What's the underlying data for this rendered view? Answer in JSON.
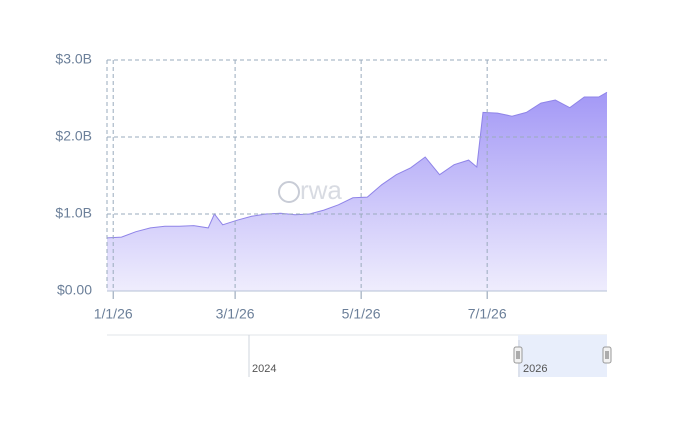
{
  "chart_data": {
    "type": "area",
    "watermark": "rwa",
    "x": [
      "12/29/25",
      "1/5/26",
      "1/12/26",
      "1/19/26",
      "1/26/26",
      "2/2/26",
      "2/9/26",
      "2/16/26",
      "2/19/26",
      "2/23/26",
      "3/2/26",
      "3/9/26",
      "3/16/26",
      "3/23/26",
      "3/30/26",
      "4/6/26",
      "4/13/26",
      "4/20/26",
      "4/27/26",
      "5/4/26",
      "5/11/26",
      "5/18/26",
      "5/25/26",
      "6/1/26",
      "6/8/26",
      "6/15/26",
      "6/22/26",
      "6/26/26",
      "6/29/26",
      "7/6/26",
      "7/13/26",
      "7/20/26",
      "7/27/26",
      "8/3/26",
      "8/10/26",
      "8/17/26",
      "8/24/26",
      "8/28/26"
    ],
    "series": [
      {
        "color": "#8f84e8",
        "values": [
          0.69,
          0.7,
          0.77,
          0.82,
          0.84,
          0.84,
          0.85,
          0.82,
          1.0,
          0.86,
          0.92,
          0.97,
          1.0,
          1.01,
          0.99,
          1.0,
          1.05,
          1.12,
          1.21,
          1.22,
          1.38,
          1.51,
          1.6,
          1.74,
          1.51,
          1.64,
          1.7,
          1.61,
          2.32,
          2.31,
          2.27,
          2.32,
          2.44,
          2.48,
          2.38,
          2.52,
          2.52,
          2.58
        ]
      }
    ],
    "xlim": [
      "12/29/25",
      "8/28/26"
    ],
    "xticks": [
      "1/1/26",
      "3/1/26",
      "5/1/26",
      "7/1/26"
    ],
    "ylim": [
      0,
      3
    ],
    "yticks": [
      {
        "value": 0,
        "label": "$0.00"
      },
      {
        "value": 1,
        "label": "$1.0B"
      },
      {
        "value": 2,
        "label": "$2.0B"
      },
      {
        "value": 3,
        "label": "$3.0B"
      }
    ],
    "grid": true,
    "navigator": {
      "labels": [
        "2024",
        "2026"
      ]
    }
  }
}
